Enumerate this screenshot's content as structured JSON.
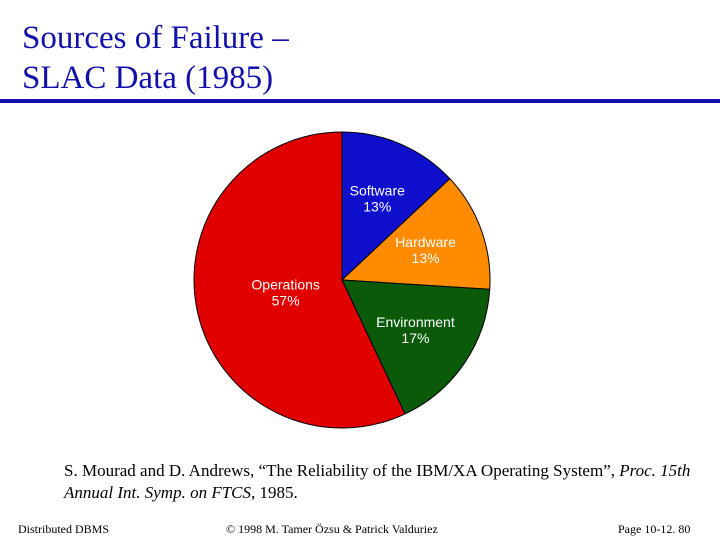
{
  "slide": {
    "title_line1": "Sources of Failure –",
    "title_line2": "SLAC Data (1985)",
    "accent_color": "#1111aa"
  },
  "citation": {
    "part1": "S. Mourad and D. Andrews, “The Reliability of the IBM/XA Operating System”, ",
    "italic_part": "Proc. 15th Annual Int. Symp. on FTCS",
    "part2": ", 1985."
  },
  "footer": {
    "left": "Distributed DBMS",
    "center": "© 1998 M. Tamer Özsu & Patrick Valduriez",
    "right": "Page 10-12. 80"
  },
  "chart_data": {
    "type": "pie",
    "title": "",
    "slices": [
      {
        "label": "Software",
        "percent_label": "13%",
        "value": 13,
        "color": "#1010cc"
      },
      {
        "label": "Hardware",
        "percent_label": "13%",
        "value": 13,
        "color": "#ff8c00"
      },
      {
        "label": "Environment",
        "percent_label": "17%",
        "value": 17,
        "color": "#0a5a0a"
      },
      {
        "label": "Operations",
        "percent_label": "57%",
        "value": 57,
        "color": "#e00000"
      }
    ],
    "start": "12 o'clock",
    "direction": "clockwise",
    "label_color": "#ffffff"
  }
}
